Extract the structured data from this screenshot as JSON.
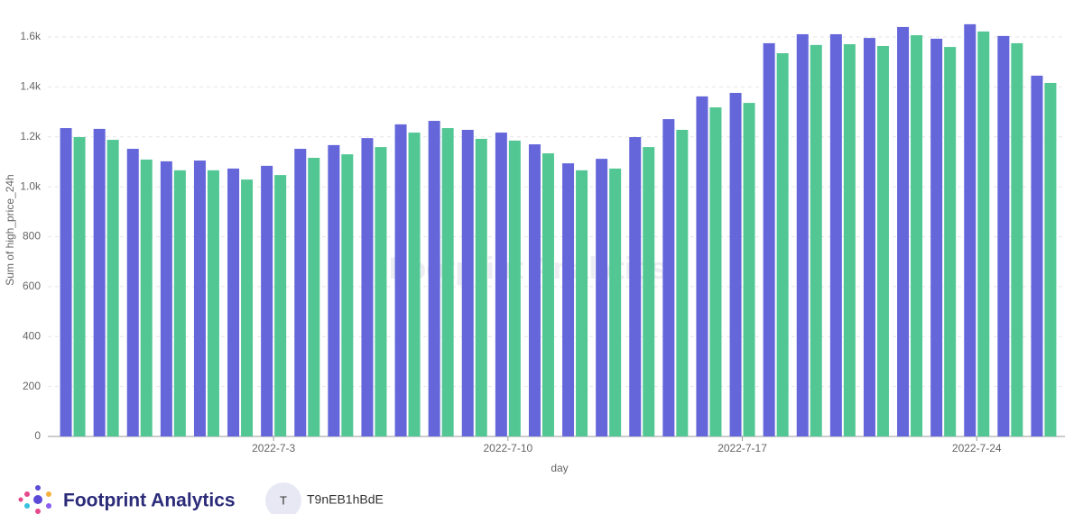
{
  "chart_data": {
    "type": "bar",
    "watermark": "Footprint Analytics",
    "y_label": "Sum of high_price_24h",
    "x_label": "day",
    "categories": [
      null,
      null,
      null,
      null,
      null,
      null,
      "2022-7-3",
      null,
      null,
      null,
      null,
      null,
      null,
      "2022-7-10",
      null,
      null,
      null,
      null,
      null,
      null,
      "2022-7-17",
      null,
      null,
      null,
      null,
      null,
      null,
      "2022-7-24",
      null,
      null
    ],
    "series": [
      {
        "color": "#6466da",
        "values": [
          1235,
          1232,
          1152,
          1102,
          1105,
          1073,
          1084,
          1152,
          1167,
          1195,
          1250,
          1264,
          1228,
          1217,
          1170,
          1094,
          1112,
          1199,
          1271,
          1362,
          1376,
          1575,
          1611,
          1611,
          1596,
          1640,
          1593,
          1651,
          1604,
          1445
        ]
      },
      {
        "color": "#52c794",
        "values": [
          1199,
          1188,
          1109,
          1066,
          1066,
          1029,
          1047,
          1116,
          1130,
          1159,
          1217,
          1235,
          1192,
          1185,
          1134,
          1066,
          1073,
          1159,
          1228,
          1318,
          1336,
          1535,
          1568,
          1571,
          1564,
          1607,
          1560,
          1622,
          1575,
          1416
        ]
      }
    ],
    "ylim": [
      0,
      1600
    ],
    "yticks": [
      0,
      200,
      400,
      600,
      800,
      {
        "value": 1000,
        "label": "1.0k"
      },
      {
        "value": 1200,
        "label": "1.2k"
      },
      {
        "value": 1400,
        "label": "1.4k"
      },
      {
        "value": 1600,
        "label": "1.6k"
      }
    ],
    "grid": true
  },
  "footer": {
    "brand": "Footprint Analytics",
    "avatar": "T",
    "user": "T9nEB1hBdE"
  }
}
